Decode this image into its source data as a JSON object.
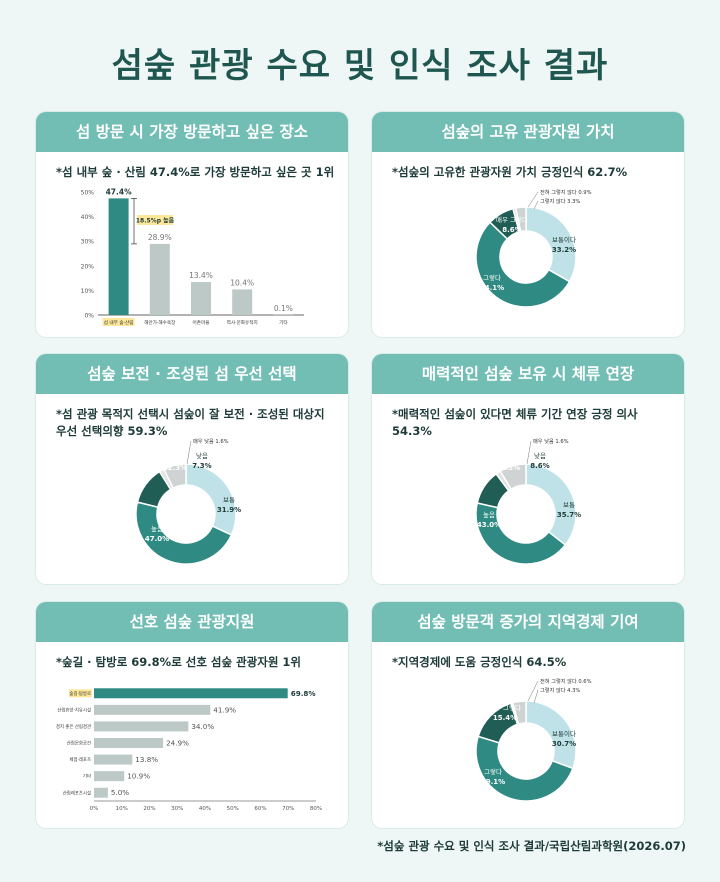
{
  "title": "섬숲 관광 수요 및 인식 조사 결과",
  "source": "*섬숲 관광 수요 및 인식 조사 결과/국립산림과학원(2026.07)",
  "colors": {
    "dark": "#1f5d55",
    "teal": "#2e8a82",
    "light": "#bfe2e8",
    "gray": "#cfd3d3",
    "bar_gray": "#bcc9c7",
    "highlight": "#fce79a"
  },
  "chart_data": [
    {
      "type": "bar",
      "title": "섬 방문 시 가장 방문하고 싶은 장소",
      "subtitle": "*섬 내부 숲 · 산림 47.4%로 가장 방문하고 싶은 곳 1위",
      "categories": [
        "섬 내부 숲·산림",
        "해안가·해수욕장",
        "어촌마을",
        "역사·문화유적지",
        "기타"
      ],
      "values": [
        47.4,
        28.9,
        13.4,
        10.4,
        0.1
      ],
      "value_labels": [
        "47.4%",
        "28.9%",
        "13.4%",
        "10.4%",
        "0.1%"
      ],
      "y_ticks": [
        "0%",
        "10%",
        "20%",
        "30%",
        "40%",
        "50%"
      ],
      "ylim": [
        0,
        50
      ],
      "annotation": "18.5%p 높음"
    },
    {
      "type": "pie",
      "title": "섬숲의 고유 관광자원 가치",
      "subtitle": "*섬숲의 고유한 관광자원 가치 긍정인식 62.7%",
      "slices": [
        {
          "name": "보통이다",
          "value": 33.2,
          "label": "33.2%"
        },
        {
          "name": "그렇다",
          "value": 54.1,
          "label": "54.1%"
        },
        {
          "name": "매우 그렇다",
          "value": 8.6,
          "label": "8.6%"
        },
        {
          "name": "전혀 그렇지 않다",
          "value": 0.9,
          "label": "0.9%"
        },
        {
          "name": "그렇지 않다",
          "value": 3.3,
          "label": "3.3%"
        }
      ]
    },
    {
      "type": "pie",
      "title": "섬숲 보전 · 조성된 섬 우선 선택",
      "subtitle": "*섬 관광 목적지 선택시 섬숲이 잘 보전 · 조성된 대상지 우선 선택의향 59.3%",
      "slices": [
        {
          "name": "보통",
          "value": 31.9,
          "label": "31.9%"
        },
        {
          "name": "높음",
          "value": 47.0,
          "label": "47.0%"
        },
        {
          "name": "매우 높음",
          "value": 12.3,
          "label": "12.3%"
        },
        {
          "name": "매우 낮음",
          "value": 1.6,
          "label": "1.6%"
        },
        {
          "name": "낮음",
          "value": 7.3,
          "label": "7.3%"
        }
      ]
    },
    {
      "type": "pie",
      "title": "매력적인 섬숲 보유 시 체류 연장",
      "subtitle": "*매력적인 섬숲이 있다면 체류 기간 연장 긍정 의사 54.3%",
      "slices": [
        {
          "name": "보통",
          "value": 35.7,
          "label": "35.7%"
        },
        {
          "name": "높음",
          "value": 43.0,
          "label": "43.0%"
        },
        {
          "name": "매우 높음",
          "value": 11.3,
          "label": "11.3%"
        },
        {
          "name": "매우 낮음",
          "value": 1.6,
          "label": "1.6%"
        },
        {
          "name": "낮음",
          "value": 8.6,
          "label": "8.6%"
        }
      ]
    },
    {
      "type": "bar",
      "orientation": "horizontal",
      "title": "선호 섬숲 관광지원",
      "subtitle": "*숲길 · 탐방로 69.8%로  선호 섬숲 관광자원 1위",
      "categories": [
        "숲길·탐방로",
        "산림휴양·치유시설",
        "경치 좋은 산림경관",
        "산림문화공간",
        "체험·레포츠",
        "기타",
        "산림레포츠시설"
      ],
      "values": [
        69.8,
        41.9,
        34.0,
        24.9,
        13.8,
        10.9,
        5.0
      ],
      "value_labels": [
        "69.8%",
        "41.9%",
        "34.0%",
        "24.9%",
        "13.8%",
        "10.9%",
        "5.0%"
      ],
      "x_ticks": [
        "0%",
        "10%",
        "20%",
        "30%",
        "40%",
        "50%",
        "60%",
        "70%",
        "80%"
      ],
      "xlim": [
        0,
        80
      ]
    },
    {
      "type": "pie",
      "title": "섬숲 방문객 증가의 지역경제 기여",
      "subtitle": "*지역경제에 도움 긍정인식 64.5%",
      "slices": [
        {
          "name": "보통이다",
          "value": 30.7,
          "label": "30.7%"
        },
        {
          "name": "그렇다",
          "value": 49.1,
          "label": "49.1%"
        },
        {
          "name": "매우 그렇다",
          "value": 15.4,
          "label": "15.4%"
        },
        {
          "name": "전혀 그렇지 않다",
          "value": 0.6,
          "label": "0.6%"
        },
        {
          "name": "그렇지 않다",
          "value": 4.3,
          "label": "4.3%"
        }
      ]
    }
  ]
}
